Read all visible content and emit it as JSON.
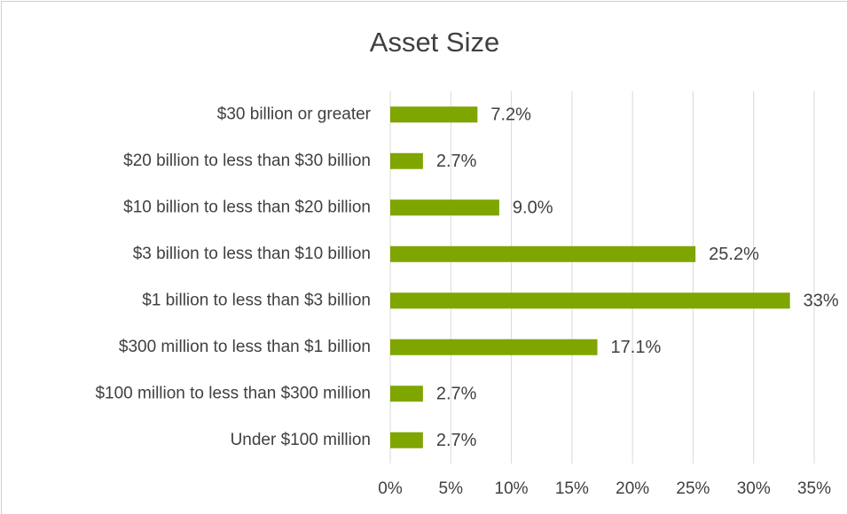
{
  "chart_data": {
    "type": "bar",
    "orientation": "horizontal",
    "title": "Asset Size",
    "categories": [
      "$30 billion or greater",
      "$20 billion to less than $30 billion",
      "$10 billion to less than $20 billion",
      "$3 billion to less than $10 billion",
      "$1 billion to less than $3 billion",
      "$300 million to less than $1 billion",
      "$100 million to less than $300 million",
      "Under $100 million"
    ],
    "values": [
      7.2,
      2.7,
      9.0,
      25.2,
      33,
      17.1,
      2.7,
      2.7
    ],
    "value_labels": [
      "7.2%",
      "2.7%",
      "9.0%",
      "25.2%",
      "33%",
      "17.1%",
      "2.7%",
      "2.7%"
    ],
    "color": "#7fa500",
    "xlim": [
      0,
      35
    ],
    "xticks": [
      {
        "value": 0,
        "label": "0%"
      },
      {
        "value": 5,
        "label": "5%"
      },
      {
        "value": 10,
        "label": "10%"
      },
      {
        "value": 15,
        "label": "15%"
      },
      {
        "value": 20,
        "label": "20%"
      },
      {
        "value": 25,
        "label": "25%"
      },
      {
        "value": 30,
        "label": "30%"
      },
      {
        "value": 35,
        "label": "35%"
      }
    ],
    "grid": true
  }
}
